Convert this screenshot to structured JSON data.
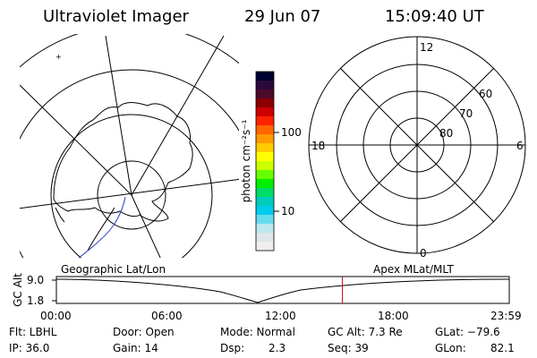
{
  "header": {
    "title": "Ultraviolet Imager",
    "date": "29 Jun 07",
    "time": "15:09:40 UT"
  },
  "colorbar": {
    "label": "photon cm⁻²s⁻¹",
    "tick_high": "100",
    "tick_low": "10",
    "colors": [
      "#000033",
      "#2a0a3a",
      "#4a0a2a",
      "#8a0000",
      "#cc0000",
      "#ff2200",
      "#ff6600",
      "#ff9900",
      "#ffcc00",
      "#ffff00",
      "#ccff00",
      "#66ff00",
      "#00ee00",
      "#00dd66",
      "#00ccbb",
      "#00ccee",
      "#66ddee",
      "#bbe8ee",
      "#dde7ea",
      "#eeeeee"
    ]
  },
  "left_map": {
    "label": "Geographic Lat/Lon"
  },
  "right_map": {
    "label": "Apex MLat/MLT",
    "lat_labels": [
      "60",
      "70",
      "80"
    ],
    "mlt_labels": {
      "top": "12",
      "left": "18",
      "right": "6",
      "bottom": "0"
    }
  },
  "altitude_strip": {
    "ylabel": "GC Alt",
    "ytick_top": "9.0",
    "ytick_bottom": "1.8",
    "xticks": [
      "00:00",
      "06:00",
      "12:00",
      "18:00",
      "23:59"
    ],
    "marker_hour": 15.16
  },
  "footer": {
    "flt": "Flt: LBHL",
    "ip": "IP: 36.0",
    "door": "Door: Open",
    "gain": "Gain: 14",
    "mode": "Mode: Normal",
    "dsp_label": "Dsp:",
    "dsp_value": "2.3",
    "gc_alt": "GC Alt: 7.3 Re",
    "seq": "Seq: 39",
    "glat": "GLat: −79.6",
    "glon_label": "GLon:",
    "glon_value": "82.1"
  }
}
